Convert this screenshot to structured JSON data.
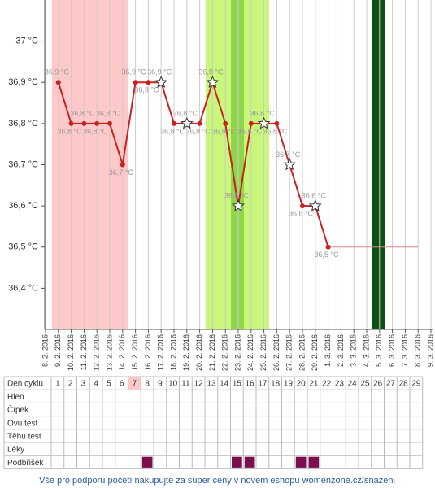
{
  "chart_data": {
    "type": "line",
    "categories": [
      "8. 2. 2016",
      "9. 2. 2016",
      "10. 2. 2016",
      "11. 2. 2016",
      "12. 2. 2016",
      "13. 2. 2016",
      "14. 2. 2016",
      "15. 2. 2016",
      "16. 2. 2016",
      "17. 2. 2016",
      "18. 2. 2016",
      "19. 2. 2016",
      "20. 2. 2016",
      "21. 2. 2016",
      "22. 2. 2016",
      "23. 2. 2016",
      "24. 2. 2016",
      "25. 2. 2016",
      "26. 2. 2016",
      "27. 2. 2016",
      "28. 2. 2016",
      "29. 2. 2016",
      "1. 3. 2016",
      "2. 3. 2016",
      "3. 3. 2016",
      "4. 3. 2016",
      "5. 3. 2016",
      "6. 3. 2016",
      "7. 3. 2016",
      "8. 3. 2016",
      "9. 3. 2016"
    ],
    "series": [
      {
        "color": "#c62222",
        "values": [
          null,
          36.9,
          36.8,
          36.8,
          36.8,
          36.8,
          36.7,
          36.9,
          36.9,
          36.9,
          36.8,
          36.8,
          36.8,
          36.9,
          36.8,
          36.6,
          36.8,
          36.8,
          36.8,
          36.7,
          36.6,
          36.6,
          36.5,
          null,
          null,
          null,
          null,
          null,
          null,
          null,
          null
        ],
        "value_labels": [
          null,
          "36,9 °C",
          "36,8 °C",
          "36,8 °C",
          "36,8 °C",
          "36,8 °C",
          "36,7 °C",
          "36,9 °C",
          "36,9 °C",
          "36,9 °C",
          "36,8 °C",
          "36,8 °C",
          "36,8 °C",
          "36,9 °C",
          "36,8 °C",
          "36,6 °C",
          "36,8 °C",
          "36,8 °C",
          "36,8 °C",
          "36,7 °C",
          "36,6 °C",
          "36,6 °C",
          "36,5 °C",
          null,
          null,
          null,
          null,
          null,
          null,
          null,
          null
        ],
        "markers": [
          null,
          "circle",
          "circle",
          "circle",
          "circle",
          "circle",
          "circle",
          "circle",
          "circle",
          "star",
          "circle",
          "star",
          "circle",
          "star",
          "circle",
          "star",
          "circle",
          "star",
          "circle",
          "star",
          "circle",
          "star",
          "circle",
          null,
          null,
          null,
          null,
          null,
          null,
          null,
          null
        ]
      }
    ],
    "ylim": [
      36.3,
      37.1
    ],
    "yticks": [
      {
        "value": 36.4,
        "label": "36,4 °C"
      },
      {
        "value": 36.5,
        "label": "36,5 °C"
      },
      {
        "value": 36.6,
        "label": "36,6 °C"
      },
      {
        "value": 36.7,
        "label": "36,7 °C"
      },
      {
        "value": 36.8,
        "label": "36,8 °C"
      },
      {
        "value": 36.9,
        "label": "36,9 °C"
      },
      {
        "value": 37,
        "label": "37 °C"
      }
    ],
    "grid": true
  },
  "table": {
    "header": "Den cyklu",
    "days": [
      1,
      2,
      3,
      4,
      5,
      6,
      7,
      8,
      9,
      10,
      11,
      12,
      13,
      14,
      15,
      16,
      17,
      18,
      19,
      20,
      21,
      22,
      23,
      24,
      25,
      26,
      27,
      28,
      29
    ],
    "highlighted_day": 7,
    "rows": [
      {
        "label": "Hlen",
        "marked_days": []
      },
      {
        "label": "Čípek",
        "marked_days": []
      },
      {
        "label": "Ovu test",
        "marked_days": []
      },
      {
        "label": "Těhu test",
        "marked_days": []
      },
      {
        "label": "Léky",
        "marked_days": []
      },
      {
        "label": "Podbřišek",
        "marked_days": [
          8,
          15,
          16,
          20,
          21
        ]
      }
    ]
  },
  "footer": {
    "link": "Vše pro podporu početí nakupujte za super ceny v novém eshopu womenzone.cz/snazeni"
  }
}
